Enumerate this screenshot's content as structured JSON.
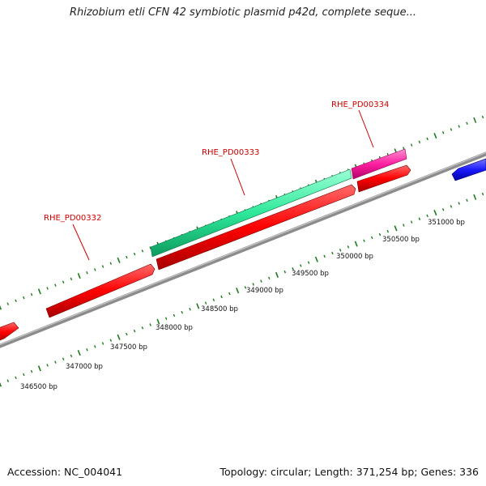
{
  "title": "Rhizobium etli CFN 42 symbiotic plasmid p42d, complete seque...",
  "footer": {
    "accession": "Accession: NC_004041",
    "summary": "Topology: circular; Length: 371,254 bp; Genes: 336"
  },
  "colors": {
    "backbone": "#8c8c8c",
    "tick_green": "#1f7a1f",
    "gene_red": "#ff0000",
    "gene_green": "#2ee89a",
    "gene_magenta": "#ff1fa0",
    "gene_blue": "#1a1aff",
    "label_red": "#cc0000"
  },
  "scale_labels": [
    "346500 bp",
    "347000 bp",
    "347500 bp",
    "348000 bp",
    "348500 bp",
    "349000 bp",
    "349500 bp",
    "350000 bp",
    "350500 bp",
    "351000 bp"
  ],
  "gene_labels": [
    "RHE_PD00332",
    "RHE_PD00333",
    "RHE_PD00334"
  ]
}
